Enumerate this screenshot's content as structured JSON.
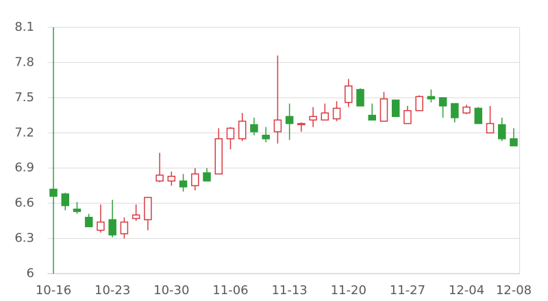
{
  "chart_data": {
    "type": "candlestick",
    "categories": [
      "10-16",
      null,
      null,
      null,
      null,
      "10-23",
      null,
      null,
      null,
      null,
      "10-30",
      null,
      null,
      null,
      null,
      "11-06",
      null,
      null,
      null,
      null,
      "11-13",
      null,
      null,
      null,
      null,
      "11-20",
      null,
      null,
      null,
      null,
      "11-27",
      null,
      null,
      null,
      null,
      "12-04",
      null,
      null,
      null,
      "12-08"
    ],
    "open": [
      6.72,
      6.68,
      6.55,
      6.48,
      6.37,
      6.46,
      6.34,
      6.47,
      6.46,
      6.79,
      6.79,
      6.79,
      6.75,
      6.86,
      6.85,
      7.15,
      7.15,
      7.27,
      7.18,
      7.21,
      7.34,
      7.27,
      7.31,
      7.31,
      7.32,
      7.46,
      7.57,
      7.35,
      7.3,
      7.48,
      7.28,
      7.39,
      7.51,
      7.5,
      7.45,
      7.37,
      7.41,
      7.2,
      7.27,
      7.15
    ],
    "high": [
      8.1,
      6.69,
      6.61,
      6.51,
      6.59,
      6.63,
      6.48,
      6.59,
      6.65,
      7.03,
      6.87,
      6.85,
      6.9,
      6.9,
      7.24,
      7.25,
      7.37,
      7.33,
      7.25,
      7.86,
      7.45,
      7.29,
      7.42,
      7.45,
      7.47,
      7.66,
      7.58,
      7.45,
      7.55,
      7.48,
      7.43,
      7.52,
      7.57,
      7.5,
      7.45,
      7.44,
      7.42,
      7.43,
      7.33,
      7.24
    ],
    "low": [
      6.0,
      6.54,
      6.51,
      6.4,
      6.35,
      6.31,
      6.3,
      6.45,
      6.37,
      6.78,
      6.75,
      6.7,
      6.71,
      6.79,
      6.85,
      7.06,
      7.13,
      7.18,
      7.12,
      7.11,
      7.14,
      7.21,
      7.25,
      7.31,
      7.3,
      7.42,
      7.43,
      7.31,
      7.3,
      7.34,
      7.28,
      7.39,
      7.46,
      7.33,
      7.29,
      7.36,
      7.28,
      7.2,
      7.13,
      7.09
    ],
    "close": [
      6.66,
      6.58,
      6.53,
      6.4,
      6.44,
      6.33,
      6.44,
      6.5,
      6.65,
      6.84,
      6.83,
      6.74,
      6.85,
      6.79,
      7.15,
      7.24,
      7.3,
      7.21,
      7.15,
      7.31,
      7.28,
      7.28,
      7.34,
      7.37,
      7.41,
      7.6,
      7.43,
      7.31,
      7.49,
      7.34,
      7.39,
      7.51,
      7.49,
      7.43,
      7.33,
      7.42,
      7.28,
      7.28,
      7.15,
      7.09
    ],
    "up_color": "#d9383f",
    "down_color": "#2e9e3a",
    "ylim": [
      6,
      8.1
    ],
    "yticks": [
      6,
      6.3,
      6.6,
      6.9,
      7.2,
      7.5,
      7.8,
      8.1
    ],
    "grid": true
  }
}
